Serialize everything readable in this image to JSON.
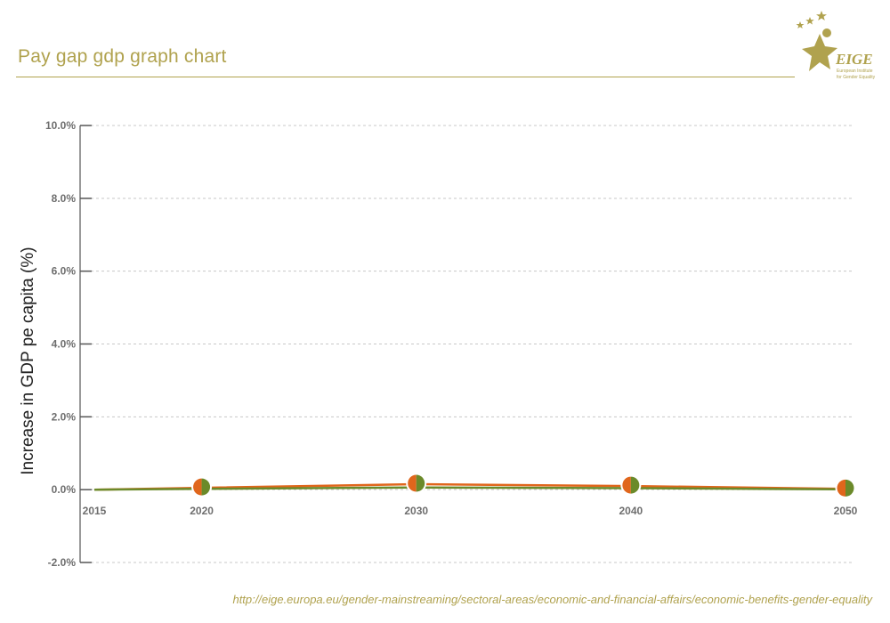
{
  "title": "Pay gap gdp graph chart",
  "logo": {
    "text": "EIGE",
    "subtitle_line1": "European Institute",
    "subtitle_line2": "for Gender Equality"
  },
  "source_url": "http://eige.europa.eu/gender-mainstreaming/sectoral-areas/economic-and-financial-affairs/economic-benefits-gender-equality",
  "colors": {
    "accent": "#b0a24e",
    "orange": "#e0661c",
    "green": "#6b8a2a",
    "grid": "#c8c8c8",
    "axis": "#555555"
  },
  "chart_data": {
    "type": "line",
    "ylabel": "Increase in GDP pe capita (%)",
    "xlabel": "",
    "x": [
      2015,
      2020,
      2030,
      2040,
      2050
    ],
    "x_ticks": [
      "2015",
      "2020",
      "2030",
      "2040",
      "2050"
    ],
    "ylim": [
      -2.0,
      10.0
    ],
    "y_ticks": [
      "-2.0%",
      "0.0%",
      "2.0%",
      "4.0%",
      "6.0%",
      "8.0%",
      "10.0%"
    ],
    "y_tick_values": [
      -2,
      0,
      2,
      4,
      6,
      8,
      10
    ],
    "grid": true,
    "series": [
      {
        "color": "#e0661c",
        "values": [
          0.0,
          0.05,
          0.15,
          0.1,
          0.02
        ]
      },
      {
        "color": "#6b8a2a",
        "values": [
          0.0,
          0.02,
          0.06,
          0.04,
          0.01
        ]
      }
    ],
    "markers_at": [
      2020,
      2030,
      2040,
      2050
    ]
  }
}
